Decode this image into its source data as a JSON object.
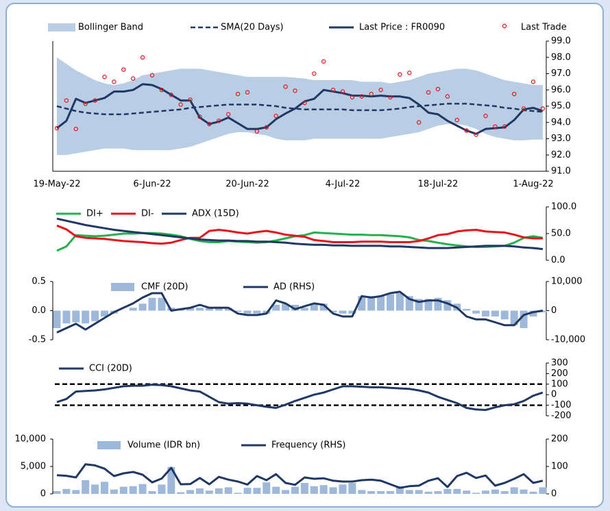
{
  "chart_data": [
    {
      "type": "line",
      "y_axis_side": "right",
      "categories": [
        "19-May-22",
        null,
        null,
        null,
        null,
        null,
        null,
        null,
        null,
        null,
        "6-Jun-22",
        null,
        null,
        null,
        null,
        null,
        null,
        null,
        null,
        null,
        "20-Jun-22",
        null,
        null,
        null,
        null,
        null,
        null,
        null,
        null,
        null,
        "4-Jul-22",
        null,
        null,
        null,
        null,
        null,
        null,
        null,
        null,
        null,
        "18-Jul-22",
        null,
        null,
        null,
        null,
        null,
        null,
        null,
        null,
        null,
        "1-Aug-22",
        null
      ],
      "ylim": [
        91,
        99
      ],
      "yticks": [
        {
          "value": 91,
          "label": "91.0"
        },
        {
          "value": 92,
          "label": "92.0"
        },
        {
          "value": 93,
          "label": "93.0"
        },
        {
          "value": 94,
          "label": "94.0"
        },
        {
          "value": 95,
          "label": "95.0"
        },
        {
          "value": 96,
          "label": "96.0"
        },
        {
          "value": 97,
          "label": "97.0"
        },
        {
          "value": 98,
          "label": "98.0"
        },
        {
          "value": 99,
          "label": "99.0"
        }
      ],
      "series": [
        {
          "name": "Bollinger Band",
          "style": "band",
          "color": "#b9cde5",
          "upper": [
            98.0,
            97.6,
            97.2,
            96.9,
            96.6,
            96.4,
            96.3,
            96.4,
            96.6,
            96.9,
            97.0,
            97.1,
            97.2,
            97.3,
            97.3,
            97.3,
            97.2,
            97.1,
            97.0,
            96.9,
            96.8,
            96.8,
            96.8,
            96.8,
            96.8,
            96.75,
            96.7,
            96.6,
            96.6,
            96.6,
            96.6,
            96.6,
            96.5,
            96.5,
            96.5,
            96.4,
            96.5,
            96.6,
            96.8,
            97.0,
            97.1,
            97.2,
            97.3,
            97.3,
            97.2,
            97.0,
            96.8,
            96.6,
            96.5,
            96.4,
            96.3,
            96.3
          ],
          "lower": [
            92.0,
            92.0,
            92.1,
            92.2,
            92.3,
            92.4,
            92.4,
            92.4,
            92.3,
            92.3,
            92.3,
            92.3,
            92.3,
            92.4,
            92.5,
            92.7,
            92.9,
            93.1,
            93.3,
            93.4,
            93.4,
            93.3,
            93.2,
            93.0,
            92.9,
            92.9,
            92.9,
            93.0,
            93.0,
            93.0,
            93.0,
            93.0,
            93.0,
            93.0,
            93.0,
            93.1,
            93.2,
            93.3,
            93.4,
            93.6,
            93.8,
            93.9,
            93.9,
            93.8,
            93.6,
            93.3,
            93.1,
            93.0,
            92.9,
            92.9,
            92.95,
            92.95
          ]
        },
        {
          "name": "SMA(20 Days)",
          "style": "dashed",
          "color": "#1f3864",
          "values": [
            95.0,
            94.85,
            94.7,
            94.6,
            94.55,
            94.5,
            94.5,
            94.5,
            94.55,
            94.6,
            94.65,
            94.7,
            94.75,
            94.8,
            94.9,
            94.95,
            95.0,
            95.05,
            95.1,
            95.1,
            95.1,
            95.1,
            95.05,
            95.0,
            94.9,
            94.85,
            94.8,
            94.8,
            94.8,
            94.8,
            94.8,
            94.75,
            94.75,
            94.75,
            94.75,
            94.8,
            94.85,
            94.95,
            95.0,
            95.05,
            95.1,
            95.15,
            95.15,
            95.15,
            95.1,
            95.05,
            95.0,
            94.9,
            94.85,
            94.75,
            94.7,
            94.65
          ]
        },
        {
          "name": "Last Price : FR0090",
          "style": "line",
          "color": "#1f3864",
          "values": [
            93.65,
            94.1,
            95.45,
            95.2,
            95.35,
            95.5,
            95.9,
            95.9,
            96.0,
            96.35,
            96.3,
            96.05,
            95.7,
            95.35,
            95.35,
            94.3,
            93.9,
            94.05,
            94.3,
            93.95,
            93.6,
            93.6,
            93.7,
            94.2,
            94.55,
            94.85,
            95.3,
            95.45,
            96.0,
            95.9,
            95.8,
            95.65,
            95.65,
            95.6,
            95.65,
            95.6,
            95.6,
            95.5,
            95.1,
            94.6,
            94.5,
            94.1,
            93.8,
            93.5,
            93.3,
            93.6,
            93.65,
            93.7,
            94.15,
            94.8,
            94.9,
            94.7
          ]
        },
        {
          "name": "Last Trade",
          "style": "marker",
          "color": "#e8141c",
          "values": [
            93.65,
            95.35,
            93.6,
            95.15,
            95.35,
            96.8,
            96.5,
            97.25,
            96.7,
            98.0,
            96.9,
            96.0,
            95.7,
            95.1,
            95.4,
            94.35,
            93.9,
            94.1,
            94.5,
            95.75,
            95.85,
            93.45,
            93.7,
            94.4,
            96.2,
            95.95,
            95.2,
            97.0,
            97.75,
            96.0,
            95.9,
            95.55,
            95.6,
            95.75,
            96.0,
            95.55,
            96.95,
            97.05,
            94.0,
            95.85,
            96.05,
            95.6,
            94.15,
            93.5,
            93.25,
            94.4,
            93.75,
            93.75,
            95.75,
            94.85,
            96.5,
            94.85
          ]
        }
      ]
    },
    {
      "type": "line",
      "y_axis_side": "right",
      "ylim": [
        0,
        100
      ],
      "yticks": [
        {
          "value": 0,
          "label": "0.0"
        },
        {
          "value": 50,
          "label": "50.0"
        },
        {
          "value": 100,
          "label": "100.0"
        }
      ],
      "series": [
        {
          "name": "DI+",
          "style": "line",
          "color": "#22b14c",
          "values": [
            18,
            26,
            47,
            46,
            45,
            46,
            48,
            50,
            50,
            51,
            51,
            50,
            48,
            45,
            40,
            36,
            34,
            34,
            36,
            35,
            34,
            33,
            34,
            37,
            41,
            45,
            47,
            52,
            51,
            50,
            49,
            48,
            48,
            47,
            47,
            46,
            45,
            43,
            38,
            36,
            33,
            30,
            28,
            26,
            25,
            25,
            26,
            27,
            33,
            42,
            45,
            42
          ]
        },
        {
          "name": "DI-",
          "style": "line",
          "color": "#e8141c",
          "values": [
            65,
            58,
            45,
            42,
            41,
            40,
            38,
            36,
            35,
            34,
            32,
            31,
            33,
            38,
            42,
            42,
            55,
            57,
            55,
            52,
            50,
            53,
            55,
            52,
            48,
            46,
            44,
            38,
            36,
            34,
            34,
            34,
            35,
            35,
            35,
            34,
            34,
            34,
            36,
            41,
            47,
            49,
            54,
            56,
            57,
            54,
            53,
            52,
            48,
            43,
            41,
            41
          ]
        },
        {
          "name": "ADX (15D)",
          "style": "line",
          "color": "#1f3864",
          "values": [
            78,
            74,
            70,
            66,
            63,
            60,
            57,
            55,
            53,
            51,
            49,
            47,
            45,
            43,
            41,
            39,
            38,
            37,
            37,
            36,
            36,
            35,
            35,
            34,
            33,
            31,
            30,
            29,
            29,
            28,
            28,
            27,
            27,
            27,
            27,
            26,
            26,
            25,
            24,
            23,
            23,
            23,
            24,
            25,
            26,
            27,
            27,
            27,
            26,
            24,
            23,
            21
          ]
        }
      ]
    },
    {
      "type": "combo",
      "ylim": [
        -0.5,
        0.5
      ],
      "yticks": [
        -0.5,
        {
          "value": 0,
          "label": "0.0"
        },
        0.5
      ],
      "y2lim": [
        -10000,
        10000
      ],
      "y2ticks": [
        {
          "value": -10000,
          "label": "-10,000"
        },
        0,
        {
          "value": 10000,
          "label": "10,000"
        }
      ],
      "series": [
        {
          "name": "CMF (20D)",
          "style": "bar",
          "color": "#9db8d9",
          "values": [
            -0.3,
            -0.22,
            -0.2,
            -0.22,
            -0.18,
            -0.1,
            -0.05,
            0.0,
            0.05,
            0.12,
            0.22,
            0.22,
            0.05,
            0.02,
            0.05,
            0.05,
            0.05,
            0.05,
            0.05,
            -0.02,
            -0.05,
            -0.05,
            -0.05,
            0.1,
            0.12,
            0.1,
            0.05,
            0.12,
            0.12,
            -0.03,
            -0.05,
            -0.05,
            0.25,
            0.25,
            0.25,
            0.28,
            0.3,
            0.25,
            0.2,
            0.2,
            0.22,
            0.18,
            0.12,
            0.03,
            -0.05,
            -0.1,
            -0.1,
            -0.15,
            -0.25,
            -0.3,
            -0.1,
            -0.03
          ]
        },
        {
          "name": "AD (RHS)",
          "style": "line",
          "color": "#1f3864",
          "axis": "y2",
          "values": [
            -7500,
            -6000,
            -4500,
            -6500,
            -4500,
            -2500,
            -500,
            1000,
            2500,
            4500,
            6000,
            6000,
            0,
            500,
            1000,
            2000,
            1000,
            1000,
            1000,
            -1000,
            -1500,
            -1500,
            -1000,
            3500,
            2500,
            500,
            1500,
            2500,
            2000,
            -1000,
            -2000,
            -2000,
            5000,
            4500,
            5000,
            6000,
            6500,
            4000,
            3000,
            3500,
            3500,
            2500,
            1000,
            -2000,
            -3000,
            -3000,
            -4000,
            -5000,
            -5000,
            -1500,
            -500,
            0
          ]
        }
      ]
    },
    {
      "type": "line",
      "y_axis_side": "right",
      "ylim": [
        -200,
        300
      ],
      "yticks": [
        -200,
        -100,
        0,
        100,
        200,
        300
      ],
      "ref_lines": [
        100,
        -100
      ],
      "series": [
        {
          "name": "CCI (20D)",
          "style": "line",
          "color": "#1f3864",
          "values": [
            -70,
            -40,
            30,
            35,
            40,
            50,
            65,
            80,
            85,
            85,
            95,
            90,
            80,
            60,
            40,
            30,
            -20,
            -70,
            -85,
            -80,
            -85,
            -100,
            -115,
            -125,
            -95,
            -60,
            -30,
            0,
            20,
            50,
            80,
            80,
            75,
            70,
            70,
            65,
            60,
            55,
            40,
            20,
            -20,
            -50,
            -80,
            -125,
            -140,
            -145,
            -120,
            -100,
            -90,
            -60,
            -10,
            20
          ]
        }
      ]
    },
    {
      "type": "combo",
      "ylim": [
        0,
        10000
      ],
      "yticks": [
        0,
        {
          "value": 5000,
          "label": "5,000"
        },
        {
          "value": 10000,
          "label": "10,000"
        }
      ],
      "y2lim": [
        0,
        200
      ],
      "y2ticks": [
        0,
        100,
        200
      ],
      "series": [
        {
          "name": "Volume (IDR bn)",
          "style": "bar",
          "color": "#9db8d9",
          "values": [
            500,
            900,
            700,
            2500,
            1700,
            2200,
            800,
            1300,
            1400,
            1800,
            500,
            1700,
            4900,
            300,
            700,
            1000,
            600,
            1000,
            1200,
            200,
            1100,
            1100,
            2100,
            1300,
            700,
            1300,
            2000,
            1400,
            1600,
            1200,
            1700,
            2000,
            700,
            500,
            500,
            500,
            1400,
            700,
            700,
            400,
            500,
            900,
            900,
            600,
            200,
            600,
            800,
            500,
            1200,
            800,
            400,
            1200
          ]
        },
        {
          "name": "Frequency (RHS)",
          "style": "line",
          "color": "#1f3864",
          "axis": "y2",
          "values": [
            68,
            66,
            60,
            108,
            104,
            92,
            65,
            75,
            80,
            70,
            42,
            56,
            95,
            35,
            36,
            58,
            35,
            62,
            52,
            45,
            34,
            65,
            50,
            72,
            40,
            33,
            60,
            55,
            57,
            48,
            45,
            45,
            50,
            52,
            48,
            35,
            22,
            28,
            30,
            48,
            57,
            25,
            65,
            77,
            58,
            67,
            30,
            40,
            55,
            72,
            40,
            48
          ]
        }
      ]
    }
  ]
}
